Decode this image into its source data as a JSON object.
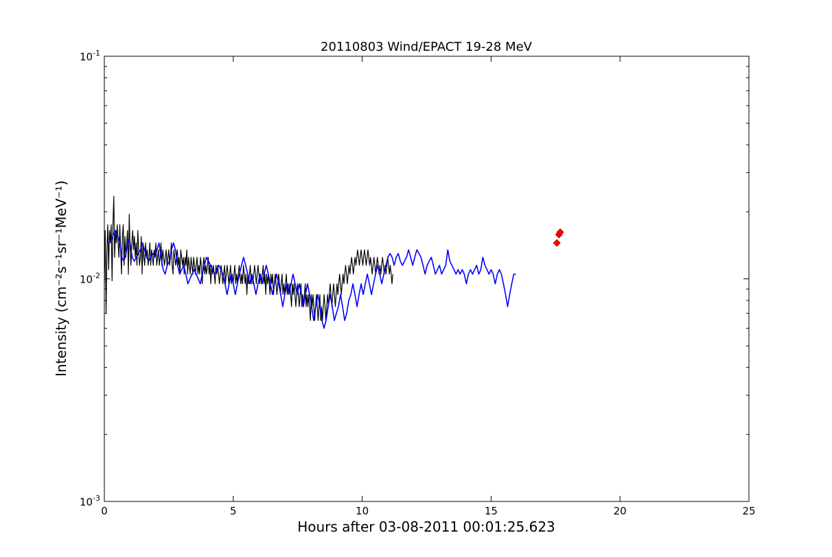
{
  "chart_data": {
    "type": "line",
    "title": "20110803 Wind/EPACT 19-28 MeV",
    "xlabel": "Hours after 03-08-2011 00:01:25.623",
    "ylabel": "Intensity (cm⁻²s⁻¹sr⁻¹MeV⁻¹)",
    "x_scale": "linear",
    "y_scale": "log",
    "xlim": [
      0,
      25
    ],
    "ylim": [
      0.001,
      0.1
    ],
    "grid": false,
    "legend": "none",
    "x_ticks": [
      0,
      5,
      10,
      15,
      20,
      25
    ],
    "x_tick_labels": [
      "0",
      "5",
      "10",
      "15",
      "20",
      "25"
    ],
    "y_ticks": [
      0.001,
      0.01,
      0.1
    ],
    "y_tick_labels": [
      {
        "base": "10",
        "exp": "-3"
      },
      {
        "base": "10",
        "exp": "-2"
      },
      {
        "base": "10",
        "exp": "-1"
      }
    ],
    "series": [
      {
        "color": "#000000",
        "line_width": 1.2,
        "x_start": 0.0,
        "x_step": 0.0333,
        "values": [
          0.0095,
          0.0165,
          0.007,
          0.0135,
          0.0175,
          0.011,
          0.0165,
          0.0145,
          0.0175,
          0.0098,
          0.0175,
          0.0235,
          0.0125,
          0.0165,
          0.0145,
          0.0175,
          0.0145,
          0.0125,
          0.0175,
          0.0135,
          0.0105,
          0.0155,
          0.0175,
          0.0115,
          0.0155,
          0.0125,
          0.0145,
          0.0165,
          0.0105,
          0.0195,
          0.0135,
          0.0115,
          0.0145,
          0.0165,
          0.0135,
          0.0155,
          0.0125,
          0.0145,
          0.0115,
          0.0165,
          0.0135,
          0.0115,
          0.0125,
          0.0155,
          0.0105,
          0.0145,
          0.0125,
          0.0115,
          0.0145,
          0.0125,
          0.0135,
          0.0115,
          0.0125,
          0.0145,
          0.0115,
          0.0135,
          0.0125,
          0.0115,
          0.0135,
          0.0125,
          0.0145,
          0.0115,
          0.0125,
          0.0135,
          0.0115,
          0.0125,
          0.0145,
          0.0115,
          0.0135,
          0.0125,
          0.0115,
          0.0125,
          0.0135,
          0.0115,
          0.0125,
          0.0135,
          0.0115,
          0.0125,
          0.0145,
          0.0115,
          0.0105,
          0.0135,
          0.0125,
          0.0115,
          0.0125,
          0.0135,
          0.0115,
          0.0125,
          0.0105,
          0.0135,
          0.0125,
          0.0115,
          0.0125,
          0.0105,
          0.0125,
          0.0115,
          0.0135,
          0.0105,
          0.0125,
          0.0115,
          0.0105,
          0.0125,
          0.0115,
          0.0105,
          0.0125,
          0.0115,
          0.0105,
          0.0115,
          0.0125,
          0.0105,
          0.0115,
          0.0105,
          0.0125,
          0.0115,
          0.0095,
          0.0115,
          0.0125,
          0.0105,
          0.0115,
          0.0105,
          0.0115,
          0.0125,
          0.0105,
          0.0115,
          0.0095,
          0.0115,
          0.0105,
          0.0115,
          0.0105,
          0.0095,
          0.0115,
          0.0105,
          0.0115,
          0.0105,
          0.0095,
          0.0105,
          0.0115,
          0.0105,
          0.0095,
          0.0105,
          0.0115,
          0.0095,
          0.0105,
          0.0115,
          0.0105,
          0.0095,
          0.0105,
          0.0115,
          0.0095,
          0.0105,
          0.0095,
          0.0105,
          0.0115,
          0.0095,
          0.0105,
          0.0095,
          0.0105,
          0.0115,
          0.0105,
          0.0095,
          0.0105,
          0.0095,
          0.0115,
          0.0105,
          0.0095,
          0.0105,
          0.0085,
          0.0105,
          0.0095,
          0.0105,
          0.0115,
          0.0095,
          0.0105,
          0.0095,
          0.0105,
          0.0115,
          0.0105,
          0.0095,
          0.0105,
          0.0115,
          0.0105,
          0.0095,
          0.0105,
          0.0095,
          0.0105,
          0.0115,
          0.0095,
          0.0105,
          0.0085,
          0.0105,
          0.0095,
          0.0105,
          0.0095,
          0.0085,
          0.0105,
          0.0095,
          0.0105,
          0.0085,
          0.0095,
          0.0105,
          0.0095,
          0.0085,
          0.0095,
          0.0105,
          0.0095,
          0.0085,
          0.0095,
          0.0105,
          0.0085,
          0.0095,
          0.0085,
          0.0095,
          0.0105,
          0.0085,
          0.0095,
          0.0085,
          0.0095,
          0.0085,
          0.0075,
          0.0095,
          0.0085,
          0.0095,
          0.0085,
          0.0075,
          0.0085,
          0.0095,
          0.0085,
          0.0075,
          0.0085,
          0.0095,
          0.0075,
          0.0085,
          0.0075,
          0.0085,
          0.0095,
          0.0075,
          0.0085,
          0.0075,
          0.0085,
          0.0075,
          0.0065,
          0.0085,
          0.0075,
          0.0085,
          0.0075,
          0.0065,
          0.0075,
          0.0085,
          0.0075,
          0.0065,
          0.0075,
          0.0085,
          0.0065,
          0.0075,
          0.0065,
          0.0075,
          0.0085,
          0.0075,
          0.0065,
          0.0075,
          0.0085,
          0.0075,
          0.0085,
          0.0095,
          0.0085,
          0.0075,
          0.0085,
          0.0095,
          0.0085,
          0.0075,
          0.0085,
          0.0095,
          0.0085,
          0.0095,
          0.0105,
          0.0095,
          0.0085,
          0.0095,
          0.0105,
          0.0095,
          0.0105,
          0.0115,
          0.0105,
          0.0095,
          0.0105,
          0.0115,
          0.0105,
          0.0115,
          0.0125,
          0.0115,
          0.0105,
          0.0115,
          0.0125,
          0.0115,
          0.0125,
          0.0135,
          0.0125,
          0.0115,
          0.0125,
          0.0135,
          0.0125,
          0.0115,
          0.0125,
          0.0135,
          0.0125,
          0.0115,
          0.0125,
          0.0135,
          0.0125,
          0.0115,
          0.0125,
          0.0115,
          0.0105,
          0.0115,
          0.0125,
          0.0115,
          0.0105,
          0.0115,
          0.0125,
          0.0115,
          0.0105,
          0.0115,
          0.0105,
          0.0115,
          0.0125,
          0.0115,
          0.0105,
          0.0115,
          0.0105,
          0.0115,
          0.0125,
          0.0115,
          0.0105,
          0.0115,
          0.0105,
          0.0095,
          0.0105
        ]
      },
      {
        "color": "#0000ff",
        "line_width": 1.6,
        "x_start": 0.2,
        "x_step": 0.08,
        "values": [
          0.0145,
          0.015,
          0.016,
          0.0165,
          0.0155,
          0.0145,
          0.0125,
          0.012,
          0.013,
          0.015,
          0.0145,
          0.0125,
          0.012,
          0.0125,
          0.013,
          0.0135,
          0.0145,
          0.0135,
          0.0125,
          0.012,
          0.0125,
          0.013,
          0.0125,
          0.0135,
          0.0145,
          0.0125,
          0.011,
          0.0105,
          0.0115,
          0.012,
          0.0135,
          0.0145,
          0.0135,
          0.0115,
          0.0105,
          0.011,
          0.0115,
          0.0105,
          0.0095,
          0.01,
          0.0105,
          0.011,
          0.0105,
          0.01,
          0.0095,
          0.0105,
          0.0115,
          0.0125,
          0.012,
          0.0115,
          0.011,
          0.0105,
          0.011,
          0.0115,
          0.011,
          0.0105,
          0.0095,
          0.0085,
          0.0095,
          0.0105,
          0.0095,
          0.0085,
          0.0095,
          0.0105,
          0.0115,
          0.0125,
          0.0115,
          0.0105,
          0.0095,
          0.0105,
          0.0095,
          0.0085,
          0.0095,
          0.0105,
          0.0095,
          0.0105,
          0.0115,
          0.0105,
          0.0095,
          0.0085,
          0.0095,
          0.0105,
          0.0095,
          0.0085,
          0.0075,
          0.0085,
          0.0095,
          0.0085,
          0.0095,
          0.0105,
          0.0095,
          0.0085,
          0.0095,
          0.0085,
          0.0075,
          0.0085,
          0.0095,
          0.0085,
          0.0075,
          0.0065,
          0.0075,
          0.0085,
          0.0075,
          0.0065,
          0.006,
          0.0065,
          0.0075,
          0.0085,
          0.0075,
          0.0065,
          0.007,
          0.0075,
          0.0085,
          0.0075,
          0.0065,
          0.007,
          0.008,
          0.0085,
          0.0095,
          0.0085,
          0.0075,
          0.0085,
          0.0095,
          0.0085,
          0.0095,
          0.0105,
          0.0095,
          0.0085,
          0.0095,
          0.0105,
          0.0115,
          0.0105,
          0.0095,
          0.0105,
          0.0115,
          0.0125,
          0.013,
          0.0125,
          0.0115,
          0.0125,
          0.013,
          0.012,
          0.0115,
          0.012,
          0.0125,
          0.0135,
          0.0125,
          0.0115,
          0.0125,
          0.0135,
          0.013,
          0.0125,
          0.0115,
          0.0105,
          0.0115,
          0.012,
          0.0125,
          0.0115,
          0.0105,
          0.011,
          0.0115,
          0.0105,
          0.011,
          0.0115,
          0.0135,
          0.012,
          0.0115,
          0.011,
          0.0105,
          0.011,
          0.0105,
          0.011,
          0.0105,
          0.0095,
          0.0105,
          0.011,
          0.0105,
          0.011,
          0.0115,
          0.0105,
          0.011,
          0.0125,
          0.0115,
          0.011,
          0.0105,
          0.011,
          0.0105,
          0.0095,
          0.0105,
          0.011,
          0.0105,
          0.0095,
          0.0085,
          0.0075,
          0.0085,
          0.0095,
          0.0105,
          0.0105
        ]
      }
    ],
    "highlight_points": {
      "color": "#ff0000",
      "x": [
        17.55,
        17.63,
        17.68
      ],
      "y": [
        0.0145,
        0.0158,
        0.0162
      ]
    }
  }
}
